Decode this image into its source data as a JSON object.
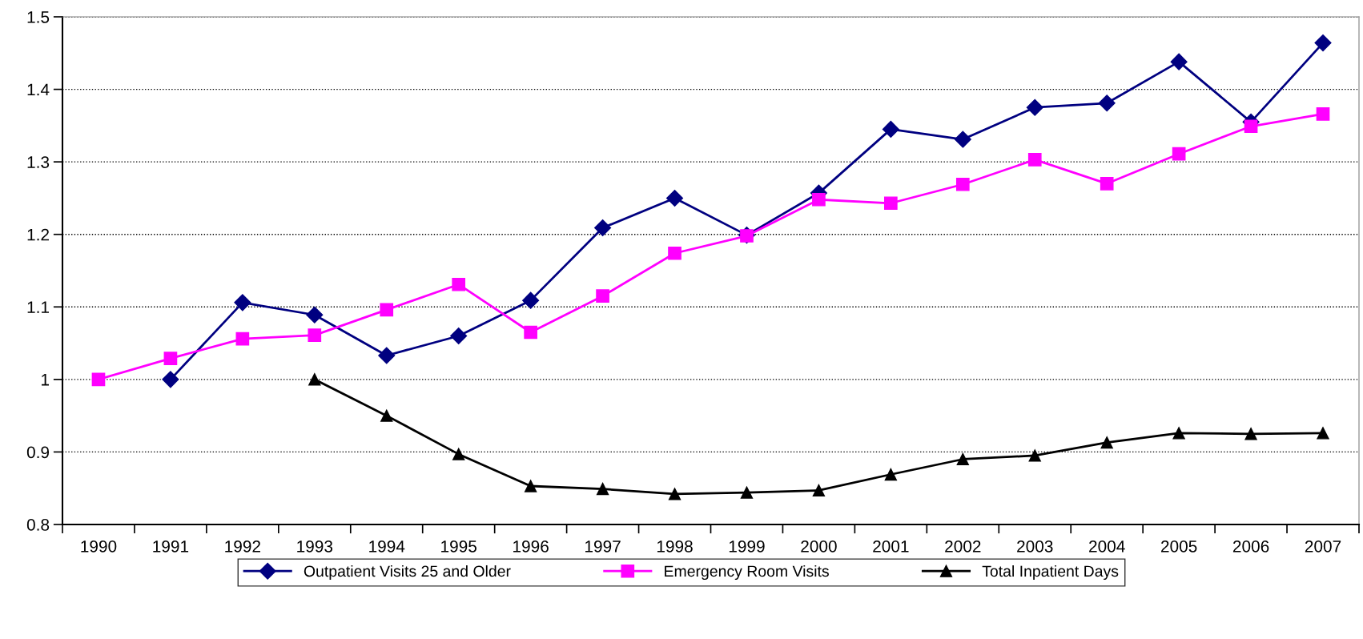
{
  "chart_data": {
    "type": "line",
    "categories": [
      "1990",
      "1991",
      "1992",
      "1993",
      "1994",
      "1995",
      "1996",
      "1997",
      "1998",
      "1999",
      "2000",
      "2001",
      "2002",
      "2003",
      "2004",
      "2005",
      "2006",
      "2007"
    ],
    "series": [
      {
        "name": "Outpatient Visits 25 and Older",
        "color": "#000080",
        "marker": "diamond",
        "values": [
          null,
          1.0,
          1.106,
          1.089,
          1.033,
          1.06,
          1.109,
          1.209,
          1.25,
          1.199,
          1.257,
          1.345,
          1.331,
          1.375,
          1.381,
          1.438,
          1.355,
          1.464
        ]
      },
      {
        "name": "Emergency Room Visits",
        "color": "#ff00ff",
        "marker": "square",
        "values": [
          1.0,
          1.029,
          1.056,
          1.061,
          1.096,
          1.131,
          1.065,
          1.115,
          1.174,
          1.198,
          1.248,
          1.243,
          1.269,
          1.303,
          1.27,
          1.311,
          1.349,
          1.366
        ]
      },
      {
        "name": "Total Inpatient Days",
        "color": "#000000",
        "marker": "triangle",
        "values": [
          null,
          null,
          null,
          1.0,
          0.95,
          0.897,
          0.853,
          0.849,
          0.842,
          0.844,
          0.847,
          0.869,
          0.89,
          0.895,
          0.913,
          0.926,
          0.925,
          0.926
        ]
      }
    ],
    "ylim": [
      0.8,
      1.5
    ],
    "yticks": [
      0.8,
      0.9,
      1,
      1.1,
      1.2,
      1.3,
      1.4,
      1.5
    ],
    "grid": "y",
    "legend": "bottom",
    "line_style": "solid"
  }
}
